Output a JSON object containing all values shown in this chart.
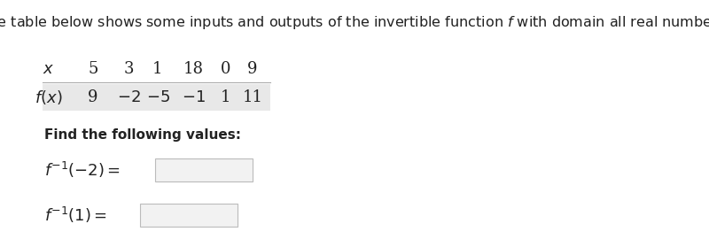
{
  "title": "The table below shows some inputs and outputs of the invertible function $f$ with domain all real numbers.",
  "bg_color": "#ffffff",
  "x_label": "$x$",
  "fx_label": "$f(x)$",
  "x_values": [
    "5",
    "3",
    "1",
    "18",
    "0",
    "9"
  ],
  "fx_values": [
    "9",
    "$-2$",
    "$-5$",
    "$-1$",
    "1",
    "11"
  ],
  "find_text": "Find the following values:",
  "eq1": "$f^{-1}(-2) =$",
  "eq2": "$f^{-1}(1) =$",
  "title_fontsize": 11.5,
  "table_fontsize": 13,
  "find_fontsize": 11,
  "eq_fontsize": 13,
  "shade_color": "#e8e8e8",
  "box_color": "#f2f2f2",
  "box_edge_color": "#bbbbbb",
  "text_color": "#222222"
}
